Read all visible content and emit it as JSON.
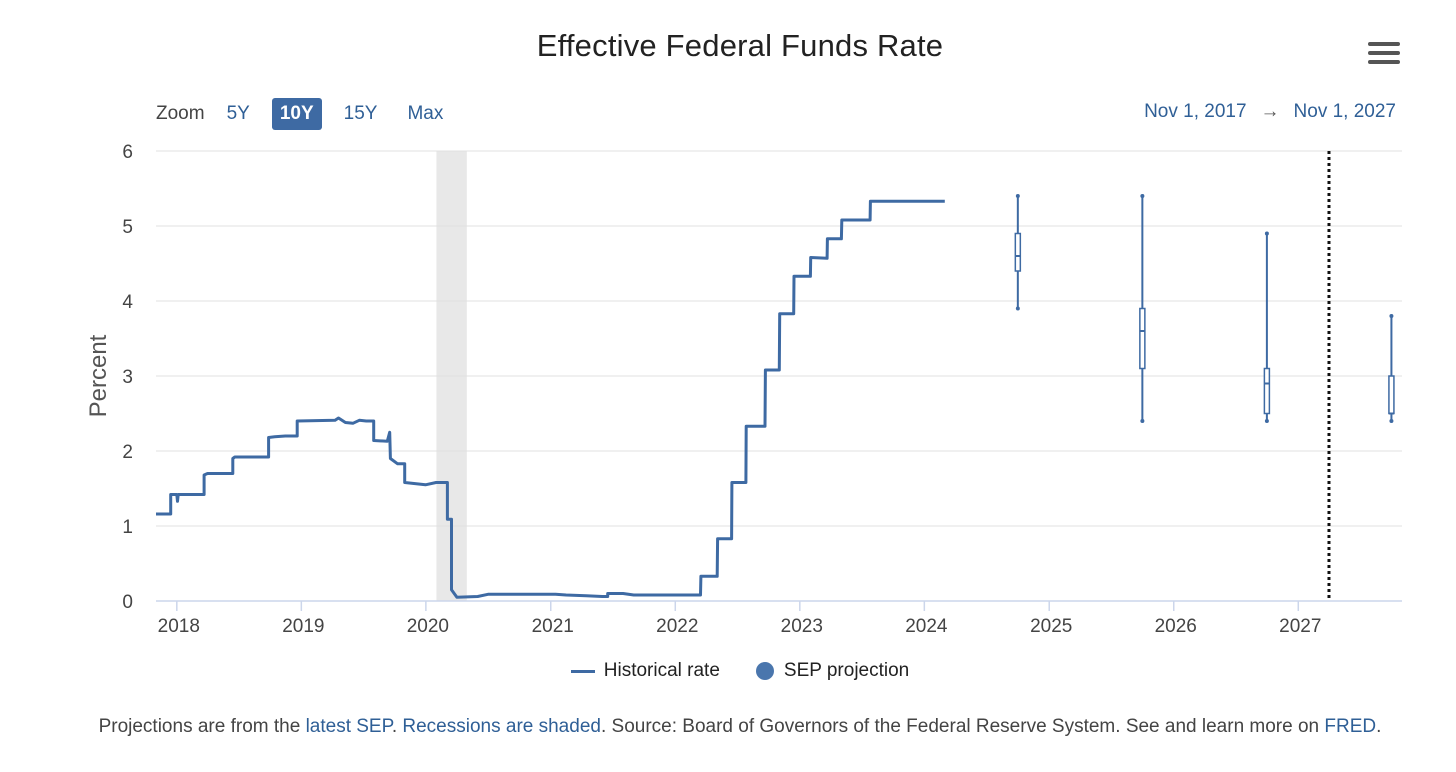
{
  "title": "Effective Federal Funds Rate",
  "zoom": {
    "label": "Zoom",
    "options": [
      "5Y",
      "10Y",
      "15Y",
      "Max"
    ],
    "selected": "10Y"
  },
  "date_range": {
    "start": "Nov 1, 2017",
    "arrow": "→",
    "end": "Nov 1, 2027"
  },
  "legend": {
    "historical": "Historical rate",
    "projection": "SEP projection"
  },
  "caption": {
    "t1": "Projections are from the ",
    "link1": "latest SEP",
    "t2": ". ",
    "link2": "Recessions are shaded",
    "t3": ". Source: Board of Governors of the Federal Reserve System. See and learn more on ",
    "link3": "FRED",
    "t4": "."
  },
  "colors": {
    "series": "#3e6aa3",
    "grid": "#e0e0e0",
    "recession": "#e8e8e8",
    "active_zoom": "#3e6aa3",
    "link": "#2f5f96"
  },
  "icons": {
    "menu": "hamburger-menu-icon"
  },
  "chart_data": {
    "type": "line",
    "title": "Effective Federal Funds Rate",
    "ylabel": "Percent",
    "xlabel": "",
    "xlim": [
      "2017-11-01",
      "2027-11-01"
    ],
    "ylim": [
      0,
      6
    ],
    "y_ticks": [
      0,
      1,
      2,
      3,
      4,
      5,
      6
    ],
    "x_ticks": [
      "2018",
      "2019",
      "2020",
      "2021",
      "2022",
      "2023",
      "2024",
      "2025",
      "2026",
      "2027"
    ],
    "grid": true,
    "legend_position": "bottom-center",
    "recessions": [
      {
        "start": "2020-02-01",
        "end": "2020-04-30"
      }
    ],
    "marker_line": "2027-04-01",
    "series": [
      {
        "name": "Historical rate",
        "type": "step-line",
        "points": [
          [
            "2017-11-01",
            1.16
          ],
          [
            "2017-12-14",
            1.16
          ],
          [
            "2017-12-14",
            1.42
          ],
          [
            "2018-01-01",
            1.42
          ],
          [
            "2018-01-03",
            1.33
          ],
          [
            "2018-01-05",
            1.42
          ],
          [
            "2018-03-22",
            1.42
          ],
          [
            "2018-03-22",
            1.68
          ],
          [
            "2018-04-01",
            1.7
          ],
          [
            "2018-06-14",
            1.7
          ],
          [
            "2018-06-14",
            1.9
          ],
          [
            "2018-06-20",
            1.92
          ],
          [
            "2018-09-27",
            1.92
          ],
          [
            "2018-09-27",
            2.18
          ],
          [
            "2018-10-15",
            2.19
          ],
          [
            "2018-11-15",
            2.2
          ],
          [
            "2018-12-20",
            2.2
          ],
          [
            "2018-12-20",
            2.4
          ],
          [
            "2019-04-10",
            2.41
          ],
          [
            "2019-04-20",
            2.44
          ],
          [
            "2019-05-10",
            2.38
          ],
          [
            "2019-06-01",
            2.37
          ],
          [
            "2019-06-20",
            2.41
          ],
          [
            "2019-07-10",
            2.4
          ],
          [
            "2019-08-01",
            2.4
          ],
          [
            "2019-08-01",
            2.14
          ],
          [
            "2019-09-10",
            2.13
          ],
          [
            "2019-09-17",
            2.25
          ],
          [
            "2019-09-19",
            1.9
          ],
          [
            "2019-10-10",
            1.83
          ],
          [
            "2019-10-31",
            1.83
          ],
          [
            "2019-10-31",
            1.58
          ],
          [
            "2019-12-31",
            1.55
          ],
          [
            "2020-01-31",
            1.58
          ],
          [
            "2020-03-04",
            1.58
          ],
          [
            "2020-03-04",
            1.09
          ],
          [
            "2020-03-16",
            1.09
          ],
          [
            "2020-03-16",
            0.15
          ],
          [
            "2020-04-01",
            0.05
          ],
          [
            "2020-06-01",
            0.06
          ],
          [
            "2020-07-01",
            0.09
          ],
          [
            "2020-09-01",
            0.09
          ],
          [
            "2020-10-15",
            0.09
          ],
          [
            "2021-01-15",
            0.09
          ],
          [
            "2021-02-15",
            0.08
          ],
          [
            "2021-04-15",
            0.07
          ],
          [
            "2021-06-01",
            0.06
          ],
          [
            "2021-06-17",
            0.06
          ],
          [
            "2021-06-17",
            0.1
          ],
          [
            "2021-08-01",
            0.1
          ],
          [
            "2021-09-01",
            0.08
          ],
          [
            "2022-03-16",
            0.08
          ],
          [
            "2022-03-17",
            0.33
          ],
          [
            "2022-05-04",
            0.33
          ],
          [
            "2022-05-05",
            0.83
          ],
          [
            "2022-06-15",
            0.83
          ],
          [
            "2022-06-16",
            1.58
          ],
          [
            "2022-07-27",
            1.58
          ],
          [
            "2022-07-28",
            2.33
          ],
          [
            "2022-09-21",
            2.33
          ],
          [
            "2022-09-22",
            3.08
          ],
          [
            "2022-11-02",
            3.08
          ],
          [
            "2022-11-03",
            3.83
          ],
          [
            "2022-12-14",
            3.83
          ],
          [
            "2022-12-15",
            4.33
          ],
          [
            "2023-02-01",
            4.33
          ],
          [
            "2023-02-02",
            4.58
          ],
          [
            "2023-03-22",
            4.57
          ],
          [
            "2023-03-23",
            4.83
          ],
          [
            "2023-05-03",
            4.83
          ],
          [
            "2023-05-04",
            5.08
          ],
          [
            "2023-07-26",
            5.08
          ],
          [
            "2023-07-27",
            5.33
          ],
          [
            "2024-03-01",
            5.33
          ]
        ]
      },
      {
        "name": "SEP projection",
        "type": "boxplot",
        "boxes": [
          {
            "x": "2024-10-01",
            "low": 3.9,
            "q1": 4.4,
            "median": 4.6,
            "q3": 4.9,
            "high": 5.4
          },
          {
            "x": "2025-10-01",
            "low": 2.4,
            "q1": 3.1,
            "median": 3.6,
            "q3": 3.9,
            "high": 5.4
          },
          {
            "x": "2026-10-01",
            "low": 2.4,
            "q1": 2.5,
            "median": 2.9,
            "q3": 3.1,
            "high": 4.9
          },
          {
            "x": "2027-10-01",
            "low": 2.4,
            "q1": 2.5,
            "median": 2.5,
            "q3": 3.0,
            "high": 3.8
          }
        ]
      }
    ]
  }
}
